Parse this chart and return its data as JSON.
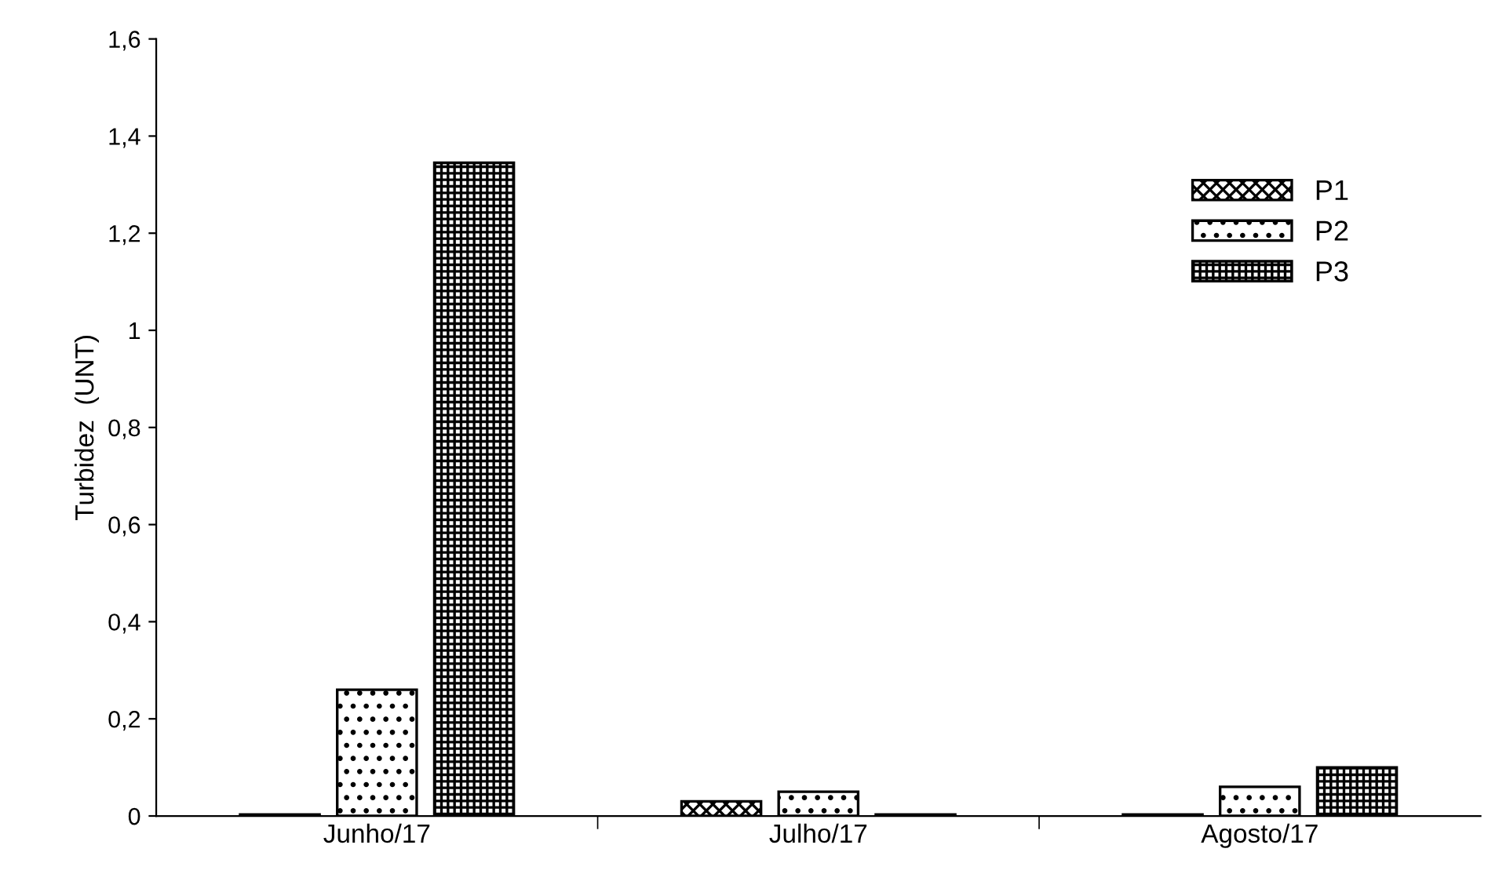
{
  "chart_data": {
    "type": "bar",
    "ylabel": "Turbidez  (UNT)",
    "categories": [
      "Junho/17",
      "Julho/17",
      "Agosto/17"
    ],
    "series": [
      {
        "name": "P1",
        "color": "#000000",
        "values": [
          0.003,
          0.03,
          0.003
        ]
      },
      {
        "name": "P2",
        "color": "#000000",
        "values": [
          0.26,
          0.05,
          0.06
        ]
      },
      {
        "name": "P3",
        "color": "#000000",
        "values": [
          1.345,
          0.003,
          0.1
        ]
      }
    ],
    "ylim": [
      0,
      1.6
    ],
    "yticks": [
      0,
      {
        "value": 0.2,
        "label": "0,2"
      },
      {
        "value": 0.4,
        "label": "0,4"
      },
      {
        "value": 0.6,
        "label": "0,6"
      },
      {
        "value": 0.8,
        "label": "0,8"
      },
      1,
      {
        "value": 1.2,
        "label": "1,2"
      },
      {
        "value": 1.4,
        "label": "1,4"
      },
      {
        "value": 1.6,
        "label": "1,6"
      }
    ],
    "grid": false,
    "legend": "right"
  }
}
